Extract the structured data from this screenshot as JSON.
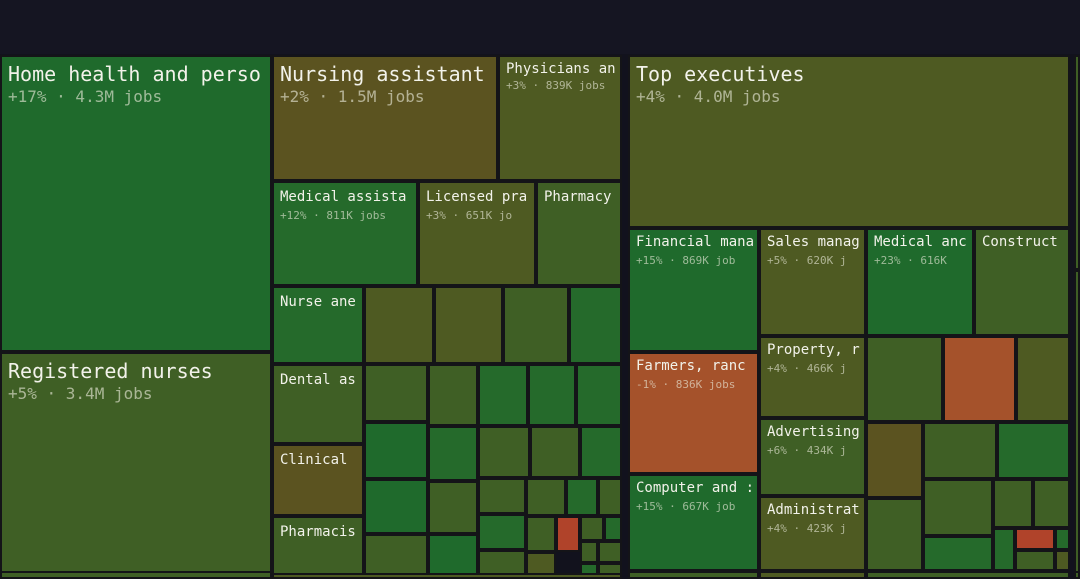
{
  "chart_data": {
    "type": "treemap",
    "title": "",
    "value_unit": "jobs",
    "color_encoding": "job growth % (green = growth, orange = decline)",
    "colors": {
      "strong_green": "#1f6a2c",
      "green": "#2b6a2a",
      "olive_green": "#3f5f25",
      "olive": "#4e5a22",
      "brown_olive": "#5b5320",
      "orange": "#a5522b",
      "red_orange": "#b0432a",
      "border": "#141418"
    },
    "tiles": [
      {
        "name": "Home health and perso",
        "growth": "+17%",
        "jobs": "4.3M jobs",
        "color": "#1f6a2c"
      },
      {
        "name": "Registered nurses",
        "growth": "+5%",
        "jobs": "3.4M jobs",
        "color": "#3f5f25"
      },
      {
        "name": "Nursing assistant",
        "growth": "+2%",
        "jobs": "1.5M jobs",
        "color": "#5b5320"
      },
      {
        "name": "Physicians an",
        "growth": "+3%",
        "jobs": "839K jobs",
        "color": "#4e5a22"
      },
      {
        "name": "Medical assista",
        "growth": "+12%",
        "jobs": "811K jobs",
        "color": "#256a2b"
      },
      {
        "name": "Licensed pra",
        "growth": "+3%",
        "jobs": "651K jo",
        "color": "#4e5a22"
      },
      {
        "name": "Pharmacy",
        "growth": "",
        "jobs": "",
        "color": "#3f5f25"
      },
      {
        "name": "Nurse ane",
        "growth": "",
        "jobs": "",
        "color": "#256a2b"
      },
      {
        "name": "Dental as",
        "growth": "",
        "jobs": "",
        "color": "#3f5f25"
      },
      {
        "name": "Clinical",
        "growth": "",
        "jobs": "",
        "color": "#5b5320"
      },
      {
        "name": "Pharmacis",
        "growth": "",
        "jobs": "",
        "color": "#3f5f25"
      },
      {
        "name": "Top executives",
        "growth": "+4%",
        "jobs": "4.0M jobs",
        "color": "#4e5a22"
      },
      {
        "name": "Financial mana",
        "growth": "+15%",
        "jobs": "869K job",
        "color": "#1f6a2c"
      },
      {
        "name": "Sales manag",
        "growth": "+5%",
        "jobs": "620K j",
        "color": "#4e5a22"
      },
      {
        "name": "Medical anc",
        "growth": "+23%",
        "jobs": "616K",
        "color": "#1f6a2c"
      },
      {
        "name": "Construct",
        "growth": "",
        "jobs": "",
        "color": "#3f5f25"
      },
      {
        "name": "Farmers, ranc",
        "growth": "-1%",
        "jobs": "836K jobs",
        "color": "#a5522b"
      },
      {
        "name": "Property, r",
        "growth": "+4%",
        "jobs": "466K j",
        "color": "#4e5a22"
      },
      {
        "name": "Advertising",
        "growth": "+6%",
        "jobs": "434K j",
        "color": "#3f5f25"
      },
      {
        "name": "Computer and :",
        "growth": "+15%",
        "jobs": "667K job",
        "color": "#1f6a2c"
      },
      {
        "name": "Administrat",
        "growth": "+4%",
        "jobs": "423K j",
        "color": "#4e5a22"
      }
    ],
    "unlabeled_tiles": [
      {
        "color": "#4e5a22"
      },
      {
        "color": "#4e5a22"
      },
      {
        "color": "#3f5f25"
      },
      {
        "color": "#256a2b"
      },
      {
        "color": "#3f5f25"
      },
      {
        "color": "#3f5f25"
      },
      {
        "color": "#256a2b"
      },
      {
        "color": "#256a2b"
      },
      {
        "color": "#256a2b"
      },
      {
        "color": "#1f6a2c"
      },
      {
        "color": "#1f6a2c"
      },
      {
        "color": "#3f5f25"
      },
      {
        "color": "#256a2b"
      },
      {
        "color": "#3f5f25"
      },
      {
        "color": "#1f6a2c"
      },
      {
        "color": "#3f5f25"
      },
      {
        "color": "#3f5f25"
      },
      {
        "color": "#256a2b"
      },
      {
        "color": "#3f5f25"
      },
      {
        "color": "#3f5f25"
      },
      {
        "color": "#256a2b"
      },
      {
        "color": "#3f5f25"
      },
      {
        "color": "#256a2b"
      },
      {
        "color": "#3f5f25"
      },
      {
        "color": "#3f5f25"
      },
      {
        "color": "#b0432a"
      },
      {
        "color": "#3f5f25"
      },
      {
        "color": "#256a2b"
      },
      {
        "color": "#4e5a22"
      },
      {
        "color": "#3f5f25"
      },
      {
        "color": "#3f5f25"
      },
      {
        "color": "#256a2b"
      },
      {
        "color": "#3f5f25"
      },
      {
        "color": "#3f5f25"
      },
      {
        "color": "#a5522b"
      },
      {
        "color": "#4e5a22"
      },
      {
        "color": "#5b5320"
      },
      {
        "color": "#3f5f25"
      },
      {
        "color": "#256a2b"
      },
      {
        "color": "#3f5f25"
      },
      {
        "color": "#3f5f25"
      },
      {
        "color": "#256a2b"
      },
      {
        "color": "#3f5f25"
      },
      {
        "color": "#3f5f25"
      },
      {
        "color": "#256a2b"
      },
      {
        "color": "#b0432a"
      },
      {
        "color": "#256a2b"
      },
      {
        "color": "#3f5f25"
      },
      {
        "color": "#4e5a22"
      },
      {
        "color": "#3f5f25"
      },
      {
        "color": "#3f5f25"
      },
      {
        "color": "#3f5f25"
      },
      {
        "color": "#4e5a22"
      },
      {
        "color": "#3f5f25"
      },
      {
        "color": "#4e5a22"
      },
      {
        "color": "#3f5f25"
      },
      {
        "color": "#3f5f25"
      }
    ]
  }
}
